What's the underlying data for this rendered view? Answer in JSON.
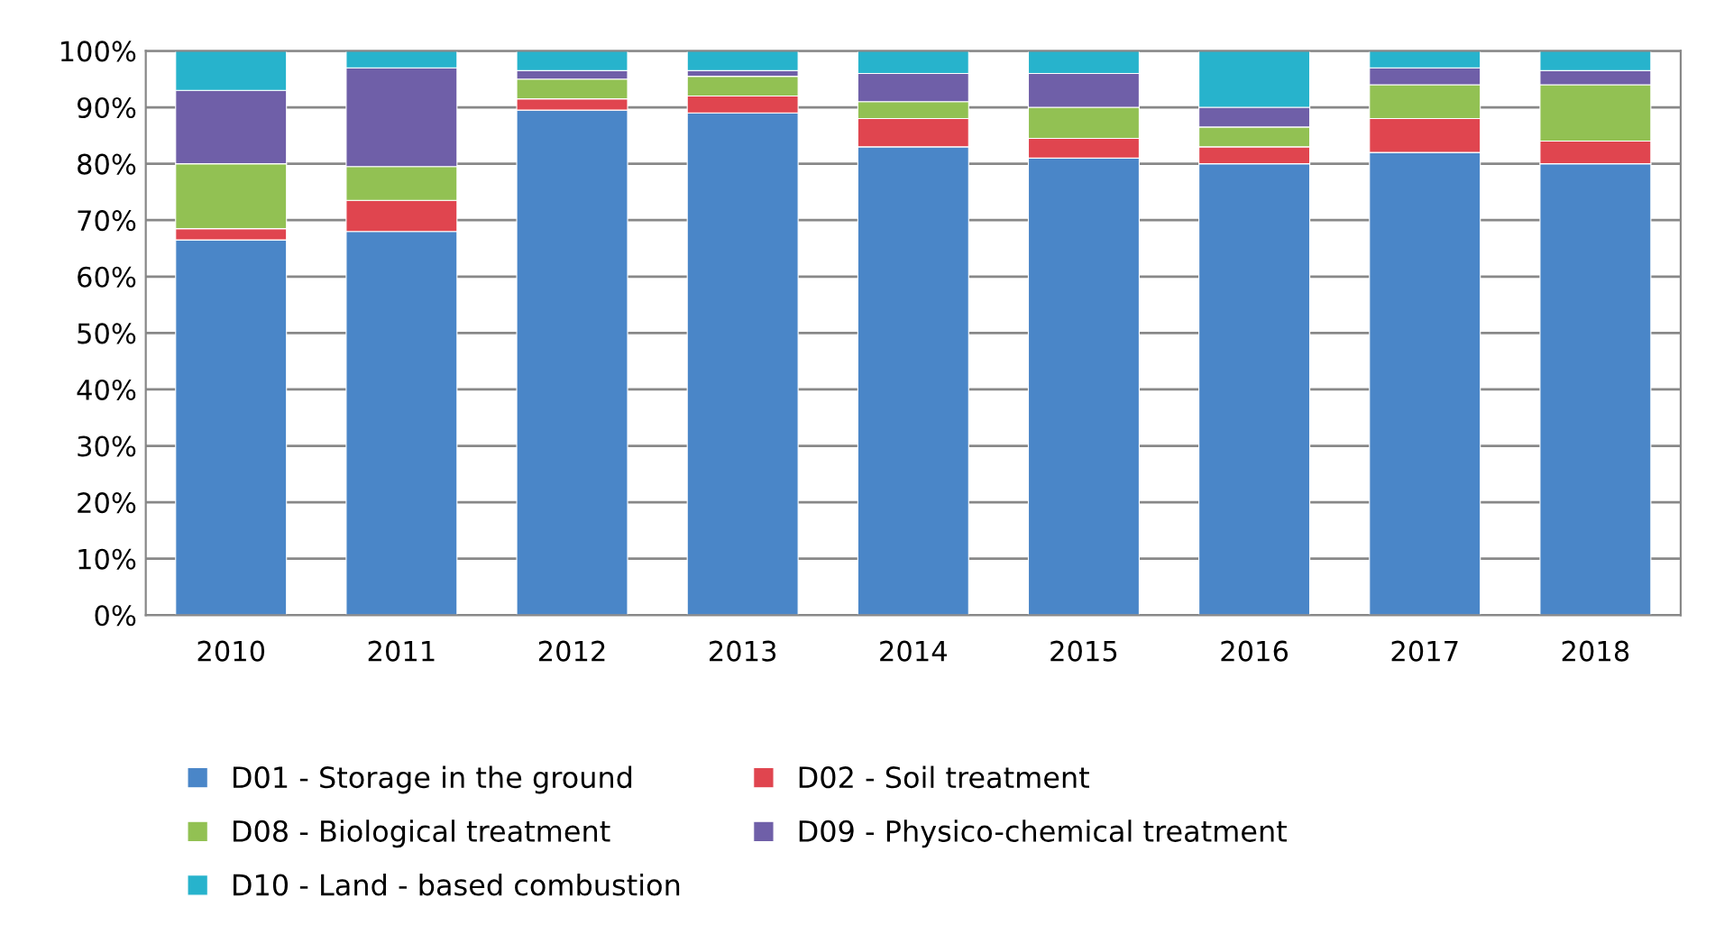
{
  "chart_data": {
    "type": "bar",
    "stacked": true,
    "categories": [
      "2010",
      "2011",
      "2012",
      "2013",
      "2014",
      "2015",
      "2016",
      "2017",
      "2018"
    ],
    "series": [
      {
        "name": "D01 - Storage in the ground",
        "color": "#4a86c8",
        "values": [
          66.5,
          68,
          89.5,
          89,
          83,
          81,
          80,
          82,
          80
        ]
      },
      {
        "name": "D02 - Soil treatment",
        "color": "#e0454f",
        "values": [
          2,
          5.5,
          2,
          3,
          5,
          3.5,
          3,
          6,
          4
        ]
      },
      {
        "name": "D08 - Biological treatment",
        "color": "#92c153",
        "values": [
          11.5,
          6,
          3.5,
          3.5,
          3,
          5.5,
          3.5,
          6,
          10
        ]
      },
      {
        "name": "D09 - Physico-chemical treatment",
        "color": "#6f5fa8",
        "values": [
          13,
          17.5,
          1.5,
          1,
          5,
          6,
          3.5,
          3,
          2.5
        ]
      },
      {
        "name": "D10 - Land - based combustion",
        "color": "#27b3cc",
        "values": [
          7,
          3,
          3.5,
          3.5,
          4,
          4,
          10,
          3,
          3.5
        ]
      }
    ],
    "ylim": [
      0,
      100
    ],
    "yticks": [
      {
        "value": 0,
        "label": "0%"
      },
      {
        "value": 10,
        "label": "10%"
      },
      {
        "value": 20,
        "label": "20%"
      },
      {
        "value": 30,
        "label": "30%"
      },
      {
        "value": 40,
        "label": "40%"
      },
      {
        "value": 50,
        "label": "50%"
      },
      {
        "value": 60,
        "label": "60%"
      },
      {
        "value": 70,
        "label": "70%"
      },
      {
        "value": 80,
        "label": "80%"
      },
      {
        "value": 90,
        "label": "90%"
      },
      {
        "value": 100,
        "label": "100%"
      }
    ],
    "grid": "y",
    "legend": "bottom"
  }
}
